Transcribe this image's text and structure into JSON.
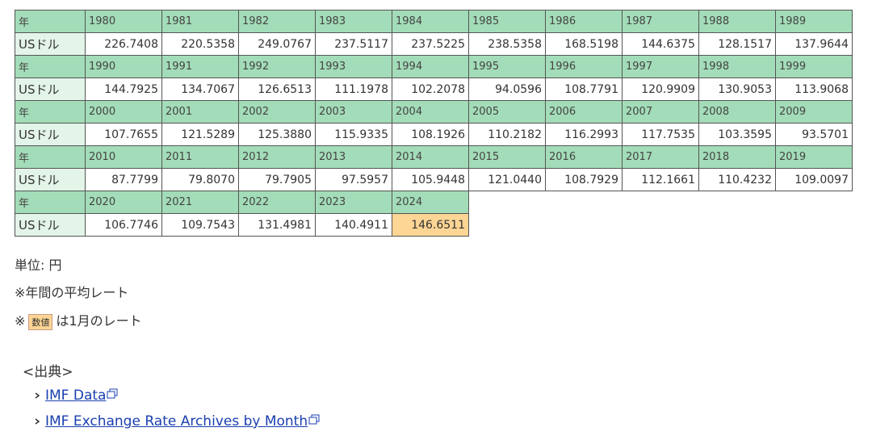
{
  "table": {
    "blocks": [
      {
        "header": "年",
        "label": "USドル",
        "years": [
          "1980",
          "1981",
          "1982",
          "1983",
          "1984",
          "1985",
          "1986",
          "1987",
          "1988",
          "1989"
        ],
        "values": [
          "226.7408",
          "220.5358",
          "249.0767",
          "237.5117",
          "237.5225",
          "238.5358",
          "168.5198",
          "144.6375",
          "128.1517",
          "137.9644"
        ]
      },
      {
        "header": "年",
        "label": "USドル",
        "years": [
          "1990",
          "1991",
          "1992",
          "1993",
          "1994",
          "1995",
          "1996",
          "1997",
          "1998",
          "1999"
        ],
        "values": [
          "144.7925",
          "134.7067",
          "126.6513",
          "111.1978",
          "102.2078",
          "94.0596",
          "108.7791",
          "120.9909",
          "130.9053",
          "113.9068"
        ]
      },
      {
        "header": "年",
        "label": "USドル",
        "years": [
          "2000",
          "2001",
          "2002",
          "2003",
          "2004",
          "2005",
          "2006",
          "2007",
          "2008",
          "2009"
        ],
        "values": [
          "107.7655",
          "121.5289",
          "125.3880",
          "115.9335",
          "108.1926",
          "110.2182",
          "116.2993",
          "117.7535",
          "103.3595",
          "93.5701"
        ]
      },
      {
        "header": "年",
        "label": "USドル",
        "years": [
          "2010",
          "2011",
          "2012",
          "2013",
          "2014",
          "2015",
          "2016",
          "2017",
          "2018",
          "2019"
        ],
        "values": [
          "87.7799",
          "79.8070",
          "79.7905",
          "97.5957",
          "105.9448",
          "121.0440",
          "108.7929",
          "112.1661",
          "110.4232",
          "109.0097"
        ]
      },
      {
        "header": "年",
        "label": "USドル",
        "years": [
          "2020",
          "2021",
          "2022",
          "2023",
          "2024"
        ],
        "values": [
          "106.7746",
          "109.7543",
          "131.4981",
          "140.4911",
          "146.6511"
        ],
        "highlighted": 4
      }
    ]
  },
  "notes": {
    "unit": "単位: 円",
    "average": "※年間の平均レート",
    "mark": "※",
    "sample": "数値",
    "january": "は1月のレート"
  },
  "source": {
    "title": "<出典>",
    "links": [
      "IMF Data",
      "IMF Exchange Rate Archives by Month"
    ]
  }
}
